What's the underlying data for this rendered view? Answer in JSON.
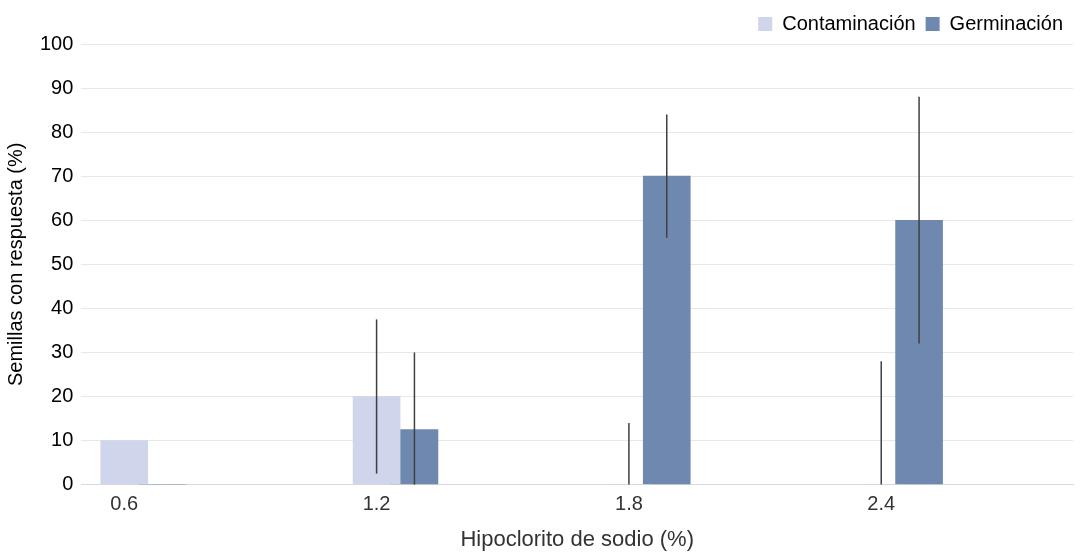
{
  "chart_data": {
    "type": "bar",
    "xlabel": "Hipoclorito de sodio (%)",
    "ylabel": "Semillas con respuesta (%)",
    "categories": [
      "0.6",
      "1.2",
      "1.8",
      "2.4"
    ],
    "series": [
      {
        "name": "Contaminación",
        "color": "#cfd5ea",
        "values": [
          10,
          20,
          0,
          0
        ],
        "errors": [
          null,
          [
            2.5,
            37.5
          ],
          [
            0,
            14
          ],
          [
            0,
            28
          ]
        ]
      },
      {
        "name": "Germinación",
        "color": "#6f88b0",
        "values": [
          0,
          12.5,
          70,
          60
        ],
        "errors": [
          null,
          [
            0,
            30
          ],
          [
            56,
            84
          ],
          [
            32,
            88
          ]
        ]
      }
    ],
    "ylim": [
      0,
      100
    ],
    "yticks": [
      0,
      10,
      20,
      30,
      40,
      50,
      60,
      70,
      80,
      90,
      100
    ],
    "grid": "y",
    "legend": "top right"
  }
}
